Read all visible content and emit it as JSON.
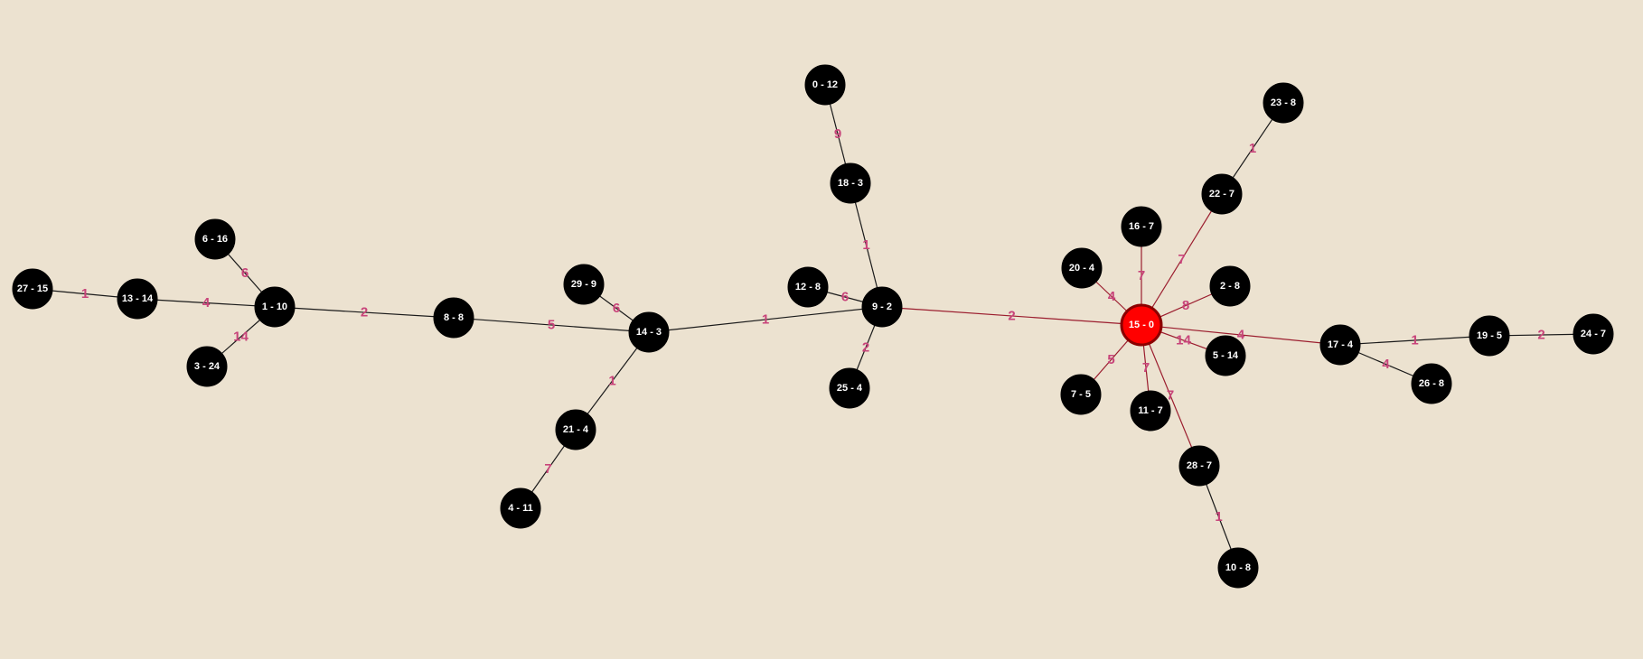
{
  "graph": {
    "colors": {
      "background": "#ece2d0",
      "node_fill": "#000000",
      "root_fill": "#ff0000",
      "root_stroke": "#8b0000",
      "node_text": "#ffffff",
      "edge_default": "#1a1a1a",
      "edge_highlight": "#9b1d2e",
      "weight_text": "#c8447a"
    },
    "root": "15 - 0",
    "nodes": [
      "27 - 15",
      "13 - 14",
      "6 - 16",
      "1 - 10",
      "3 - 24",
      "8 - 8",
      "29 - 9",
      "14 - 3",
      "21 - 4",
      "4 - 11",
      "0 - 12",
      "18 - 3",
      "12 - 8",
      "9 - 2",
      "25 - 4",
      "20 - 4",
      "16 - 7",
      "15 - 0",
      "22 - 7",
      "23 - 8",
      "2 - 8",
      "7 - 5",
      "11 - 7",
      "5 - 14",
      "28 - 7",
      "10 - 8",
      "17 - 4",
      "26 - 8",
      "19 - 5",
      "24 - 7"
    ],
    "edges": [
      {
        "from": "27 - 15",
        "to": "13 - 14",
        "weight": "1",
        "highlight": false
      },
      {
        "from": "13 - 14",
        "to": "1 - 10",
        "weight": "4",
        "highlight": false
      },
      {
        "from": "6 - 16",
        "to": "1 - 10",
        "weight": "6",
        "highlight": false
      },
      {
        "from": "3 - 24",
        "to": "1 - 10",
        "weight": "14",
        "highlight": false
      },
      {
        "from": "1 - 10",
        "to": "8 - 8",
        "weight": "2",
        "highlight": false
      },
      {
        "from": "8 - 8",
        "to": "14 - 3",
        "weight": "5",
        "highlight": false
      },
      {
        "from": "29 - 9",
        "to": "14 - 3",
        "weight": "6",
        "highlight": false
      },
      {
        "from": "14 - 3",
        "to": "21 - 4",
        "weight": "1",
        "highlight": false
      },
      {
        "from": "21 - 4",
        "to": "4 - 11",
        "weight": "7",
        "highlight": false
      },
      {
        "from": "14 - 3",
        "to": "9 - 2",
        "weight": "1",
        "highlight": false
      },
      {
        "from": "0 - 12",
        "to": "18 - 3",
        "weight": "9",
        "highlight": false
      },
      {
        "from": "18 - 3",
        "to": "9 - 2",
        "weight": "1",
        "highlight": false
      },
      {
        "from": "12 - 8",
        "to": "9 - 2",
        "weight": "6",
        "highlight": false
      },
      {
        "from": "9 - 2",
        "to": "25 - 4",
        "weight": "2",
        "highlight": false
      },
      {
        "from": "9 - 2",
        "to": "15 - 0",
        "weight": "2",
        "highlight": true
      },
      {
        "from": "20 - 4",
        "to": "15 - 0",
        "weight": "4",
        "highlight": true
      },
      {
        "from": "16 - 7",
        "to": "15 - 0",
        "weight": "7",
        "highlight": true
      },
      {
        "from": "15 - 0",
        "to": "22 - 7",
        "weight": "7",
        "highlight": true
      },
      {
        "from": "22 - 7",
        "to": "23 - 8",
        "weight": "1",
        "highlight": false
      },
      {
        "from": "15 - 0",
        "to": "2 - 8",
        "weight": "8",
        "highlight": true
      },
      {
        "from": "15 - 0",
        "to": "7 - 5",
        "weight": "5",
        "highlight": true
      },
      {
        "from": "15 - 0",
        "to": "11 - 7",
        "weight": "7",
        "highlight": true
      },
      {
        "from": "15 - 0",
        "to": "5 - 14",
        "weight": "14",
        "highlight": true
      },
      {
        "from": "15 - 0",
        "to": "28 - 7",
        "weight": "7",
        "highlight": true
      },
      {
        "from": "28 - 7",
        "to": "10 - 8",
        "weight": "1",
        "highlight": false
      },
      {
        "from": "15 - 0",
        "to": "17 - 4",
        "weight": "4",
        "highlight": true
      },
      {
        "from": "17 - 4",
        "to": "26 - 8",
        "weight": "4",
        "highlight": false
      },
      {
        "from": "17 - 4",
        "to": "19 - 5",
        "weight": "1",
        "highlight": false
      },
      {
        "from": "19 - 5",
        "to": "24 - 7",
        "weight": "2",
        "highlight": false
      }
    ]
  }
}
